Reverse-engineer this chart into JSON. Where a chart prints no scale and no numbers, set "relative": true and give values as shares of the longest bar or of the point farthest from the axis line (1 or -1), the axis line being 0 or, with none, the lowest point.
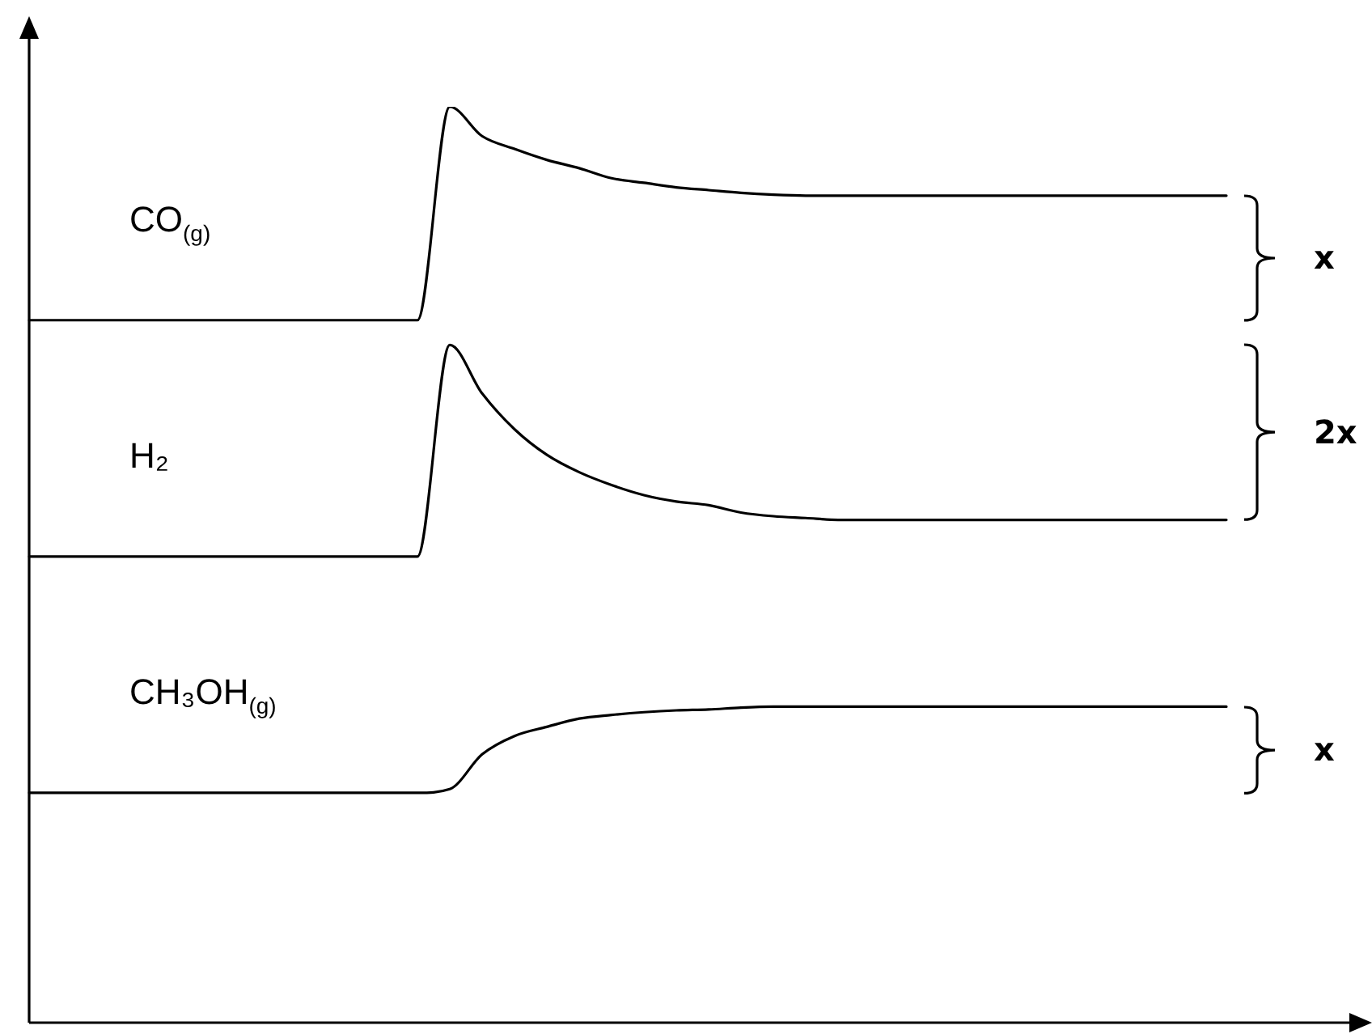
{
  "chart_data": {
    "type": "line",
    "relative": true,
    "marker": "none",
    "line_style": "solid",
    "categories": [
      null,
      null,
      null,
      null,
      null,
      null,
      null,
      null,
      null,
      null,
      null,
      null,
      null,
      null,
      null,
      null,
      null,
      null,
      null,
      null,
      null,
      null,
      null,
      null,
      null,
      null,
      null,
      null,
      null,
      null,
      null,
      null,
      null,
      null,
      null,
      null,
      null,
      null,
      null,
      null,
      null,
      null
    ],
    "series": [
      {
        "name": "CO$_{(g)}$",
        "color": "#000000",
        "values": [
          0.767,
          0.767,
          0.767,
          0.767,
          0.767,
          0.767,
          0.767,
          0.767,
          0.767,
          0.767,
          0.767,
          0.767,
          0.767,
          1,
          0.968,
          0.954,
          0.942,
          0.933,
          0.922,
          0.917,
          0.912,
          0.909,
          0.906,
          0.904,
          0.903,
          0.903,
          0.903,
          0.903,
          0.903,
          0.903,
          0.903,
          0.903,
          0.903,
          0.903,
          0.903,
          0.903,
          0.903,
          0.903,
          null,
          null,
          null,
          null
        ]
      },
      {
        "name": "H₂",
        "color": "#000000",
        "values": [
          0.509,
          0.509,
          0.509,
          0.509,
          0.509,
          0.509,
          0.509,
          0.509,
          0.509,
          0.509,
          0.509,
          0.509,
          0.509,
          0.74,
          0.687,
          0.648,
          0.62,
          0.601,
          0.587,
          0.576,
          0.569,
          0.565,
          0.557,
          0.553,
          0.551,
          0.549,
          0.549,
          0.549,
          0.549,
          0.549,
          0.549,
          0.549,
          0.549,
          0.549,
          0.549,
          0.549,
          0.549,
          0.549,
          null,
          null,
          null,
          null
        ]
      },
      {
        "name": "CH₃OH$_{(g)}$",
        "color": "#000000",
        "values": [
          0.251,
          0.251,
          0.251,
          0.251,
          0.251,
          0.251,
          0.251,
          0.251,
          0.251,
          0.251,
          0.251,
          0.251,
          0.251,
          0.255,
          0.293,
          0.313,
          0.323,
          0.332,
          0.336,
          0.339,
          0.341,
          0.342,
          0.344,
          0.345,
          0.345,
          0.345,
          0.345,
          0.345,
          0.345,
          0.345,
          0.345,
          0.345,
          0.345,
          0.345,
          0.345,
          0.345,
          0.345,
          0.345,
          null,
          null,
          null,
          null
        ]
      }
    ],
    "annotations": [
      "x",
      "2x",
      "x"
    ]
  }
}
